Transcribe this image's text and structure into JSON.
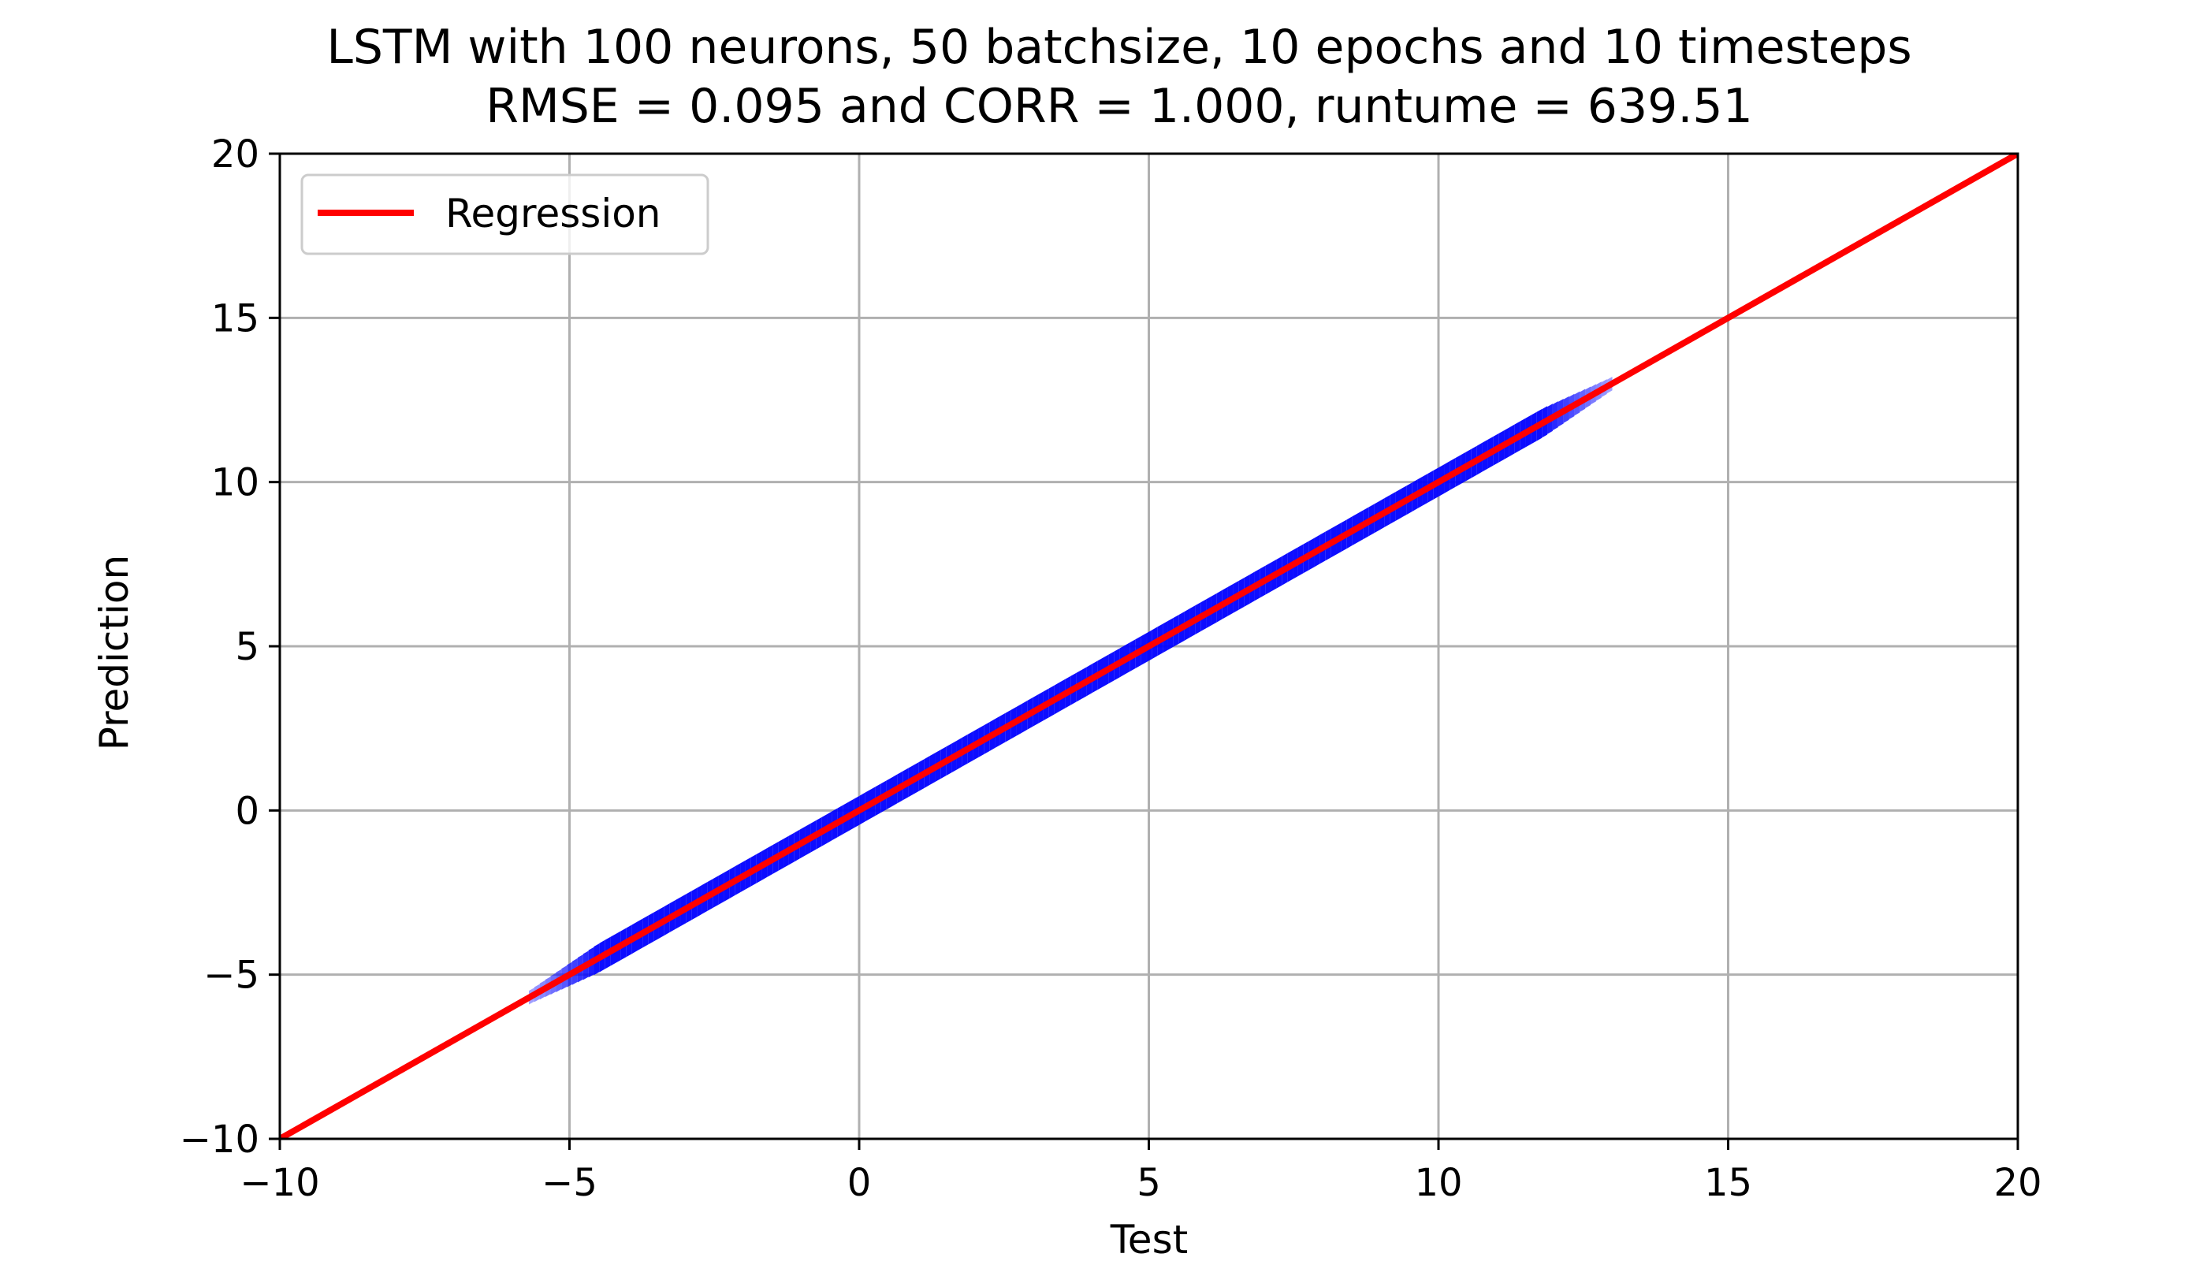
{
  "chart_data": {
    "type": "scatter",
    "title": "LSTM with 100 neurons, 50 batchsize, 10 epochs and 10 timesteps",
    "subtitle": "RMSE = 0.095 and CORR = 1.000, runtume = 639.51",
    "xlabel": "Test",
    "ylabel": "Prediction",
    "xlim": [
      -10,
      20
    ],
    "ylim": [
      -10,
      20
    ],
    "x_ticks": [
      -10,
      -5,
      0,
      5,
      10,
      15,
      20
    ],
    "y_ticks": [
      -10,
      -5,
      0,
      5,
      10,
      15,
      20
    ],
    "x_tick_labels": [
      "−10",
      "−5",
      "0",
      "5",
      "10",
      "15",
      "20"
    ],
    "y_tick_labels": [
      "−10",
      "−5",
      "0",
      "5",
      "10",
      "15",
      "20"
    ],
    "grid": true,
    "legend_position": "upper-left",
    "series": [
      {
        "kind": "points",
        "color": "#0000ff",
        "x_range": [
          -5.7,
          13.0
        ],
        "spread": 0.25
      },
      {
        "name": "Regression",
        "kind": "line",
        "color": "#ff0000",
        "x": [
          -10,
          20
        ],
        "y": [
          -10,
          20
        ]
      }
    ]
  }
}
